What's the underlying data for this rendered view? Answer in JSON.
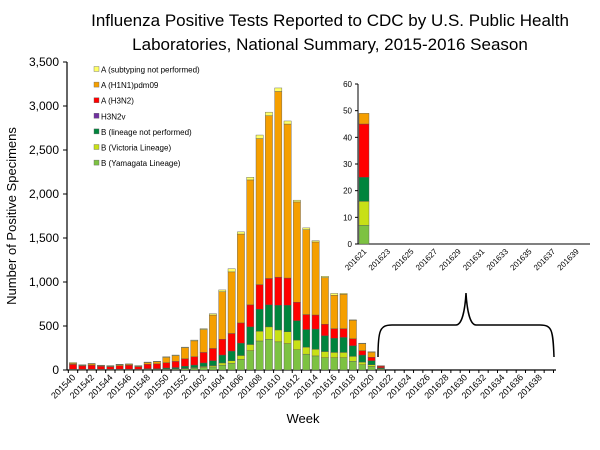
{
  "chart_data": {
    "type": "bar",
    "stacked": true,
    "title": "Influenza Positive Tests Reported to CDC by U.S. Public Health Laboratories, National Summary, 2015-2016 Season",
    "title_lines": [
      "Influenza Positive Tests Reported to CDC by U.S. Public Health",
      "Laboratories, National Summary, 2015-2016 Season"
    ],
    "xlabel": "Week",
    "ylabel": "Number of Positive Specimens",
    "ylim": [
      0,
      3500
    ],
    "yticks": [
      "0",
      "500",
      "1,000",
      "1,500",
      "2,000",
      "2,500",
      "3,000",
      "3,500"
    ],
    "xticks": [
      "201540",
      "201542",
      "201544",
      "201546",
      "201548",
      "201550",
      "201552",
      "201602",
      "201604",
      "201606",
      "201608",
      "201610",
      "201612",
      "201614",
      "201616",
      "201618",
      "201620",
      "201622",
      "201624",
      "201626",
      "201628",
      "201630",
      "201632",
      "201634",
      "201636",
      "201638"
    ],
    "week_range": [
      "201540",
      "201639"
    ],
    "legend_position": "top-left",
    "grid": false,
    "categories": [
      "201540",
      "201541",
      "201542",
      "201543",
      "201544",
      "201545",
      "201546",
      "201547",
      "201548",
      "201549",
      "201550",
      "201551",
      "201552",
      "201601",
      "201602",
      "201603",
      "201604",
      "201605",
      "201606",
      "201607",
      "201608",
      "201609",
      "201610",
      "201611",
      "201612",
      "201613",
      "201614",
      "201615",
      "201616",
      "201617",
      "201618",
      "201619",
      "201620",
      "201621"
    ],
    "series": [
      {
        "name": "B (Yamagata Lineage)",
        "color": "#7dc242",
        "values": [
          3,
          2,
          3,
          2,
          2,
          3,
          3,
          2,
          5,
          5,
          8,
          10,
          15,
          20,
          28,
          35,
          55,
          75,
          120,
          220,
          330,
          350,
          320,
          300,
          230,
          180,
          160,
          140,
          140,
          140,
          100,
          60,
          40,
          7
        ]
      },
      {
        "name": "B (Victoria Lineage)",
        "color": "#c8e016",
        "values": [
          1,
          1,
          1,
          1,
          1,
          1,
          1,
          1,
          2,
          2,
          3,
          4,
          6,
          8,
          12,
          15,
          25,
          30,
          45,
          70,
          110,
          140,
          135,
          135,
          110,
          80,
          75,
          70,
          60,
          60,
          55,
          30,
          20,
          9
        ]
      },
      {
        "name": "B (lineage not performed)",
        "color": "#00843d",
        "values": [
          5,
          4,
          5,
          4,
          4,
          5,
          5,
          4,
          8,
          8,
          12,
          14,
          22,
          28,
          40,
          55,
          90,
          110,
          140,
          200,
          250,
          250,
          280,
          300,
          220,
          200,
          230,
          180,
          160,
          170,
          120,
          80,
          45,
          9
        ]
      },
      {
        "name": "H3N2v",
        "color": "#7030a0",
        "values": [
          0,
          0,
          0,
          0,
          0,
          0,
          0,
          0,
          0,
          0,
          0,
          0,
          0,
          0,
          0,
          0,
          0,
          0,
          0,
          0,
          0,
          0,
          0,
          0,
          0,
          0,
          0,
          0,
          0,
          0,
          0,
          0,
          0,
          0
        ]
      },
      {
        "name": "A (H3N2)",
        "color": "#ff0000",
        "values": [
          55,
          40,
          45,
          35,
          30,
          40,
          45,
          30,
          50,
          55,
          60,
          70,
          85,
          95,
          120,
          140,
          180,
          200,
          230,
          250,
          280,
          300,
          320,
          310,
          210,
          170,
          160,
          130,
          110,
          100,
          80,
          50,
          40,
          20
        ]
      },
      {
        "name": "A (H1N1)pdm09",
        "color": "#f59f00",
        "values": [
          12,
          10,
          15,
          10,
          10,
          12,
          12,
          10,
          20,
          25,
          60,
          65,
          125,
          180,
          260,
          380,
          540,
          700,
          1010,
          1420,
          1660,
          1850,
          2110,
          1750,
          1140,
          965,
          830,
          530,
          380,
          390,
          210,
          80,
          60,
          4
        ]
      },
      {
        "name": "A (subtyping not performed)",
        "color": "#ffff66",
        "values": [
          9,
          3,
          6,
          3,
          3,
          4,
          4,
          3,
          5,
          5,
          7,
          7,
          7,
          9,
          10,
          15,
          20,
          35,
          25,
          30,
          40,
          40,
          40,
          35,
          20,
          20,
          15,
          15,
          20,
          10,
          5,
          5,
          3,
          0
        ]
      }
    ],
    "legend_order": [
      "A (subtyping not performed)",
      "A (H1N1)pdm09",
      "A (H3N2)",
      "H3N2v",
      "B (lineage not performed)",
      "B (Victoria Lineage)",
      "B (Yamagata Lineage)"
    ],
    "inset": {
      "ylim": [
        0,
        60
      ],
      "yticks": [
        "0",
        "10",
        "20",
        "30",
        "40",
        "50",
        "60"
      ],
      "xticks": [
        "201621",
        "201623",
        "201625",
        "201627",
        "201629",
        "201631",
        "201633",
        "201635",
        "201637",
        "201639"
      ],
      "week": "201621",
      "values": {
        "B (Yamagata Lineage)": 7,
        "B (Victoria Lineage)": 9,
        "B (lineage not performed)": 9,
        "H3N2v": 0,
        "A (H3N2)": 20,
        "A (H1N1)pdm09": 4,
        "A (subtyping not performed)": 0
      }
    }
  }
}
